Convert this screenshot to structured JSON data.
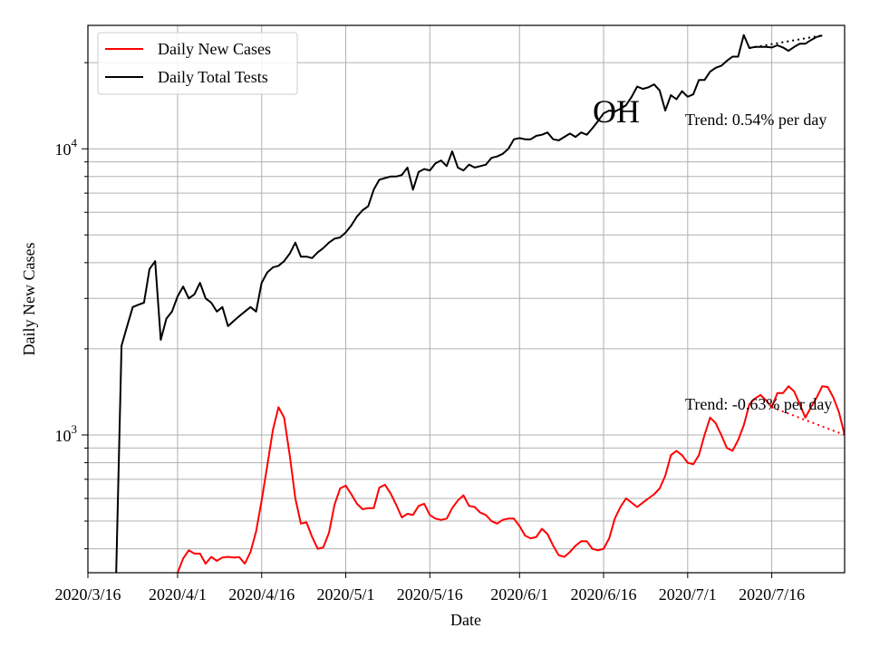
{
  "chart_data": {
    "type": "line",
    "title": "OH",
    "xlabel": "Date",
    "ylabel": "Daily New Cases",
    "y_scale": "log",
    "ylim": [
      330,
      27000
    ],
    "grid": true,
    "legend_position": "top-left",
    "x_tick_labels": [
      "2020/3/16",
      "2020/4/1",
      "2020/4/16",
      "2020/5/1",
      "2020/5/16",
      "2020/6/1",
      "2020/6/16",
      "2020/7/1",
      "2020/7/16"
    ],
    "y_tick_labels": [
      {
        "base": "10",
        "exp": "3",
        "value": 1000
      },
      {
        "base": "10",
        "exp": "4",
        "value": 10000
      }
    ],
    "start_date": "2020-03-16",
    "series": [
      {
        "name": "Daily New Cases",
        "color": "#ff0000",
        "start_day": 5,
        "values": [
          300,
          300,
          300,
          300,
          300,
          300,
          300,
          300,
          300,
          300,
          300,
          330,
          370,
          395,
          385,
          385,
          355,
          375,
          363,
          373,
          375,
          373,
          374,
          355,
          390,
          460,
          590,
          780,
          1040,
          1250,
          1150,
          850,
          600,
          490,
          495,
          440,
          400,
          405,
          455,
          570,
          650,
          665,
          620,
          575,
          550,
          555,
          555,
          655,
          670,
          625,
          570,
          515,
          530,
          525,
          565,
          575,
          525,
          510,
          505,
          510,
          555,
          590,
          615,
          565,
          560,
          535,
          525,
          500,
          490,
          505,
          510,
          510,
          480,
          445,
          435,
          440,
          470,
          450,
          410,
          380,
          375,
          390,
          410,
          425,
          425,
          400,
          395,
          400,
          435,
          510,
          560,
          600,
          580,
          560,
          580,
          600,
          620,
          650,
          720,
          850,
          880,
          850,
          800,
          790,
          850,
          1000,
          1150,
          1100,
          1000,
          900,
          880,
          960,
          1080,
          1280,
          1340,
          1380,
          1320,
          1250,
          1400,
          1400,
          1480,
          1420,
          1280,
          1150,
          1250,
          1350,
          1480,
          1470,
          1350,
          1200,
          1000
        ],
        "trend_label": "Trend: -0.63% per day"
      },
      {
        "name": "Daily Total Tests",
        "color": "#000000",
        "start_day": 5,
        "values": [
          300,
          2050,
          2400,
          2800,
          2850,
          2900,
          3800,
          4050,
          2150,
          2550,
          2700,
          3050,
          3300,
          3000,
          3100,
          3400,
          3000,
          2900,
          2700,
          2800,
          2400,
          2500,
          2600,
          2700,
          2800,
          2700,
          3400,
          3700,
          3850,
          3900,
          4050,
          4300,
          4700,
          4200,
          4200,
          4150,
          4350,
          4500,
          4700,
          4850,
          4900,
          5100,
          5400,
          5800,
          6100,
          6300,
          7200,
          7800,
          7900,
          8000,
          8000,
          8100,
          8600,
          7200,
          8300,
          8500,
          8400,
          8900,
          9100,
          8700,
          9800,
          8600,
          8400,
          8800,
          8600,
          8700,
          8800,
          9300,
          9400,
          9600,
          10000,
          10800,
          10900,
          10800,
          10800,
          11100,
          11200,
          11400,
          10800,
          10700,
          11000,
          11300,
          11000,
          11400,
          11200,
          11800,
          12500,
          13300,
          13600,
          13500,
          13800,
          14200,
          15200,
          16500,
          16200,
          16400,
          16800,
          16000,
          13600,
          15400,
          14900,
          15900,
          15200,
          15500,
          17400,
          17400,
          18600,
          19200,
          19500,
          20300,
          21000,
          21000,
          25000,
          22500,
          22700,
          22700,
          22700,
          22600,
          23000,
          22600,
          22000,
          22700,
          23300,
          23300,
          24000,
          24600,
          24900
        ],
        "trend_label": "Trend: 0.54% per day"
      }
    ]
  }
}
